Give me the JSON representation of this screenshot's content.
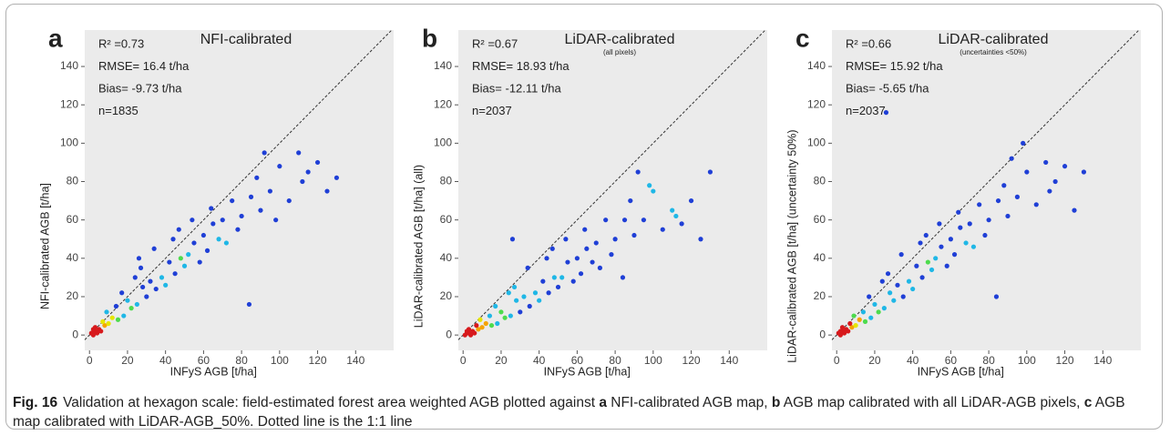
{
  "chart_data": [
    {
      "type": "scatter",
      "letter": "a",
      "title": "NFI-calibrated",
      "stats": [
        "R² =0.73",
        "RMSE= 16.4 t/ha",
        "Bias= -9.73 t/ha",
        "n=1835"
      ],
      "x_label": "INFyS AGB [t/ha]",
      "y_label": "NFI-calibrated AGB [t/ha]",
      "xlim": [
        -2.5,
        160
      ],
      "ylim": [
        -8,
        159
      ],
      "xticks": [
        0,
        20,
        40,
        60,
        80,
        100,
        120,
        140
      ],
      "yticks": [
        0,
        20,
        40,
        60,
        80,
        100,
        120,
        140
      ],
      "x": [
        1,
        2,
        3,
        2,
        4,
        5,
        3,
        6,
        8,
        7,
        10,
        12,
        9,
        15,
        14,
        18,
        20,
        22,
        17,
        25,
        28,
        24,
        30,
        32,
        27,
        35,
        38,
        34,
        40,
        42,
        45,
        44,
        48,
        50,
        47,
        52,
        55,
        58,
        54,
        60,
        62,
        65,
        68,
        64,
        70,
        72,
        75,
        78,
        80,
        85,
        88,
        90,
        92,
        95,
        100,
        105,
        110,
        112,
        115,
        120,
        125,
        130,
        84,
        98,
        26
      ],
      "y": [
        1,
        0,
        2,
        3,
        1,
        3,
        4,
        2,
        5,
        7,
        6,
        9,
        12,
        8,
        15,
        10,
        18,
        14,
        22,
        16,
        25,
        30,
        20,
        28,
        35,
        24,
        30,
        45,
        26,
        38,
        32,
        50,
        40,
        36,
        55,
        42,
        48,
        38,
        60,
        52,
        44,
        58,
        50,
        66,
        60,
        48,
        70,
        55,
        62,
        72,
        82,
        65,
        95,
        75,
        88,
        70,
        95,
        80,
        85,
        90,
        75,
        82,
        16,
        60,
        40
      ]
    },
    {
      "type": "scatter",
      "letter": "b",
      "title": "LiDAR-calibrated",
      "subtitle": "(all pixels)",
      "stats": [
        "R² =0.67",
        "RMSE= 18.93 t/ha",
        "Bias= -12.11 t/ha",
        "n=2037"
      ],
      "x_label": "INFyS AGB [t/ha]",
      "y_label": "LiDAR-calibrated AGB [t/ha] (all)",
      "xlim": [
        -2.5,
        160
      ],
      "ylim": [
        -8,
        159
      ],
      "xticks": [
        0,
        20,
        40,
        60,
        80,
        100,
        120,
        140
      ],
      "yticks": [
        0,
        20,
        40,
        60,
        80,
        100,
        120,
        140
      ],
      "x": [
        1,
        2,
        3,
        2,
        4,
        5,
        3,
        6,
        8,
        7,
        10,
        12,
        9,
        15,
        14,
        18,
        20,
        22,
        17,
        25,
        28,
        24,
        30,
        32,
        27,
        35,
        38,
        34,
        40,
        42,
        45,
        44,
        48,
        50,
        47,
        52,
        55,
        58,
        54,
        60,
        62,
        65,
        68,
        64,
        70,
        72,
        75,
        78,
        80,
        85,
        88,
        90,
        92,
        95,
        100,
        105,
        110,
        112,
        115,
        120,
        125,
        130,
        84,
        98,
        26
      ],
      "y": [
        0,
        1,
        1,
        2,
        0,
        2,
        3,
        1,
        3,
        5,
        4,
        6,
        8,
        5,
        10,
        6,
        12,
        9,
        15,
        10,
        18,
        22,
        12,
        20,
        25,
        15,
        22,
        35,
        18,
        28,
        22,
        40,
        30,
        25,
        45,
        30,
        38,
        28,
        50,
        40,
        32,
        45,
        38,
        55,
        48,
        35,
        60,
        42,
        50,
        60,
        70,
        52,
        85,
        60,
        75,
        55,
        65,
        62,
        58,
        70,
        50,
        85,
        30,
        78,
        50
      ]
    },
    {
      "type": "scatter",
      "letter": "c",
      "title": "LiDAR-calibrated",
      "subtitle": "(uncertainties <50%)",
      "stats": [
        "R² =0.66",
        "RMSE= 15.92 t/ha",
        "Bias= -5.65 t/ha",
        "n=2037"
      ],
      "x_label": "INFyS AGB [t/ha]",
      "y_label": "LiDAR-calibrated AGB [t/ha] (uncertainty 50%)",
      "xlim": [
        -2.5,
        160
      ],
      "ylim": [
        -8,
        159
      ],
      "xticks": [
        0,
        20,
        40,
        60,
        80,
        100,
        120,
        140
      ],
      "yticks": [
        0,
        20,
        40,
        60,
        80,
        100,
        120,
        140
      ],
      "x": [
        1,
        2,
        3,
        2,
        4,
        5,
        3,
        6,
        8,
        7,
        10,
        12,
        9,
        15,
        14,
        18,
        20,
        22,
        17,
        25,
        28,
        24,
        30,
        32,
        27,
        35,
        38,
        34,
        40,
        42,
        45,
        44,
        48,
        50,
        47,
        52,
        55,
        58,
        54,
        60,
        62,
        65,
        68,
        64,
        70,
        72,
        75,
        78,
        80,
        85,
        88,
        90,
        92,
        95,
        100,
        105,
        110,
        112,
        115,
        120,
        125,
        130,
        84,
        98,
        26
      ],
      "y": [
        1,
        0,
        2,
        2,
        1,
        3,
        4,
        2,
        4,
        6,
        5,
        8,
        10,
        7,
        12,
        9,
        16,
        12,
        20,
        14,
        22,
        28,
        18,
        26,
        32,
        20,
        28,
        42,
        24,
        36,
        30,
        48,
        38,
        34,
        52,
        40,
        46,
        36,
        58,
        50,
        42,
        56,
        48,
        64,
        58,
        46,
        68,
        52,
        60,
        70,
        78,
        62,
        92,
        72,
        85,
        68,
        90,
        75,
        80,
        88,
        65,
        85,
        20,
        100,
        116
      ]
    }
  ],
  "caption": {
    "label": "Fig. 16",
    "segments": [
      {
        "text": "Validation at hexagon scale: field-estimated forest area weighted AGB plotted against ",
        "bold": false
      },
      {
        "text": "a",
        "bold": true
      },
      {
        "text": " NFI-calibrated AGB map, ",
        "bold": false
      },
      {
        "text": "b",
        "bold": true
      },
      {
        "text": " AGB map calibrated with all LiDAR-AGB pixels, ",
        "bold": false
      },
      {
        "text": "c",
        "bold": true
      },
      {
        "text": " AGB map calibrated with LiDAR-AGB_50%. Dotted line is the 1:1 line",
        "bold": false
      }
    ]
  }
}
